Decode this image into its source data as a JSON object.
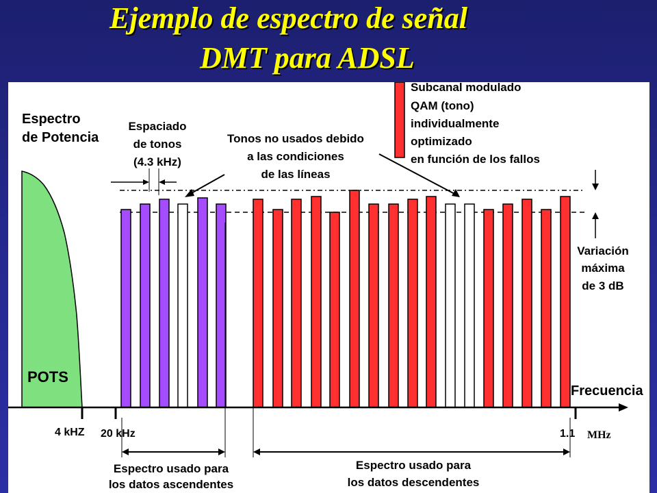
{
  "title": {
    "line1": "Ejemplo de espectro de señal",
    "line2": "DMT para ADSL"
  },
  "diagram": {
    "y_axis_label_line1": "Espectro",
    "y_axis_label_line2": "de Potencia",
    "x_axis_label": "Frecuencia",
    "pots_label": "POTS",
    "tone_spacing_label": [
      "Espaciado",
      "de tonos",
      "(4.3 kHz)"
    ],
    "unused_tones_label": [
      "Tonos no usados debido",
      "a las condiciones",
      "de las líneas"
    ],
    "legend_label": [
      "Subcanal modulado",
      "QAM (tono)",
      "individualmente",
      "optimizado",
      "en función de los fallos"
    ],
    "variation_label": [
      "Variación",
      "máxima",
      "de 3 dB"
    ],
    "tick_4khz": "4 kHZ",
    "tick_20khz": "20 kHz",
    "tick_1_1": "1.1",
    "unit_mhz": "MHz",
    "upstream_label": [
      "Espectro usado para",
      "los datos ascendentes"
    ],
    "downstream_label": [
      "Espectro usado para",
      "los datos descendentes"
    ],
    "colors": {
      "pots": "#7ee07e",
      "upstream": "#a64cff",
      "downstream": "#ff3030",
      "unused": "#ffffff"
    }
  }
}
